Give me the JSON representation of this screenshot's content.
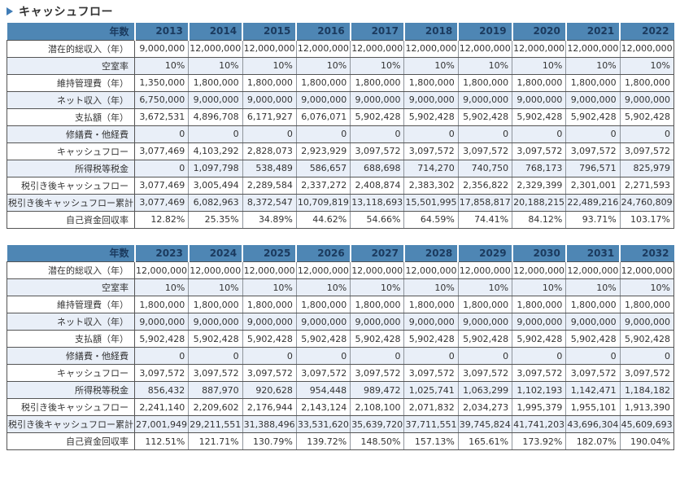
{
  "title": "キャッシュフロー",
  "header_label": "年数",
  "colors": {
    "header_bg": "#4e86b4",
    "header_text": "#1b3a5e",
    "alt_row_bg": "#e9eff8",
    "border_dark": "#555555",
    "border_mid": "#8f959c",
    "title_icon": "#3f7cb6",
    "text": "#333333"
  },
  "tables": [
    {
      "name": "cashflow-2013-2022",
      "years": [
        "2013",
        "2014",
        "2015",
        "2016",
        "2017",
        "2018",
        "2019",
        "2020",
        "2021",
        "2022"
      ],
      "rows": [
        {
          "label": "潜在的総収入（年）",
          "values": [
            "9,000,000",
            "12,000,000",
            "12,000,000",
            "12,000,000",
            "12,000,000",
            "12,000,000",
            "12,000,000",
            "12,000,000",
            "12,000,000",
            "12,000,000"
          ]
        },
        {
          "label": "空室率",
          "values": [
            "10%",
            "10%",
            "10%",
            "10%",
            "10%",
            "10%",
            "10%",
            "10%",
            "10%",
            "10%"
          ]
        },
        {
          "label": "維持管理費（年）",
          "values": [
            "1,350,000",
            "1,800,000",
            "1,800,000",
            "1,800,000",
            "1,800,000",
            "1,800,000",
            "1,800,000",
            "1,800,000",
            "1,800,000",
            "1,800,000"
          ]
        },
        {
          "label": "ネット収入（年）",
          "values": [
            "6,750,000",
            "9,000,000",
            "9,000,000",
            "9,000,000",
            "9,000,000",
            "9,000,000",
            "9,000,000",
            "9,000,000",
            "9,000,000",
            "9,000,000"
          ]
        },
        {
          "label": "支払額（年）",
          "values": [
            "3,672,531",
            "4,896,708",
            "6,171,927",
            "6,076,071",
            "5,902,428",
            "5,902,428",
            "5,902,428",
            "5,902,428",
            "5,902,428",
            "5,902,428"
          ]
        },
        {
          "label": "修繕費・他経費",
          "values": [
            "0",
            "0",
            "0",
            "0",
            "0",
            "0",
            "0",
            "0",
            "0",
            "0"
          ]
        },
        {
          "label": "キャッシュフロー",
          "values": [
            "3,077,469",
            "4,103,292",
            "2,828,073",
            "2,923,929",
            "3,097,572",
            "3,097,572",
            "3,097,572",
            "3,097,572",
            "3,097,572",
            "3,097,572"
          ]
        },
        {
          "label": "所得税等税金",
          "values": [
            "0",
            "1,097,798",
            "538,489",
            "586,657",
            "688,698",
            "714,270",
            "740,750",
            "768,173",
            "796,571",
            "825,979"
          ]
        },
        {
          "label": "税引き後キャッシュフロー",
          "values": [
            "3,077,469",
            "3,005,494",
            "2,289,584",
            "2,337,272",
            "2,408,874",
            "2,383,302",
            "2,356,822",
            "2,329,399",
            "2,301,001",
            "2,271,593"
          ]
        },
        {
          "label": "税引き後キャッシュフロー累計",
          "values": [
            "3,077,469",
            "6,082,963",
            "8,372,547",
            "10,709,819",
            "13,118,693",
            "15,501,995",
            "17,858,817",
            "20,188,215",
            "22,489,216",
            "24,760,809"
          ]
        },
        {
          "label": "自己資金回収率",
          "values": [
            "12.82%",
            "25.35%",
            "34.89%",
            "44.62%",
            "54.66%",
            "64.59%",
            "74.41%",
            "84.12%",
            "93.71%",
            "103.17%"
          ]
        }
      ]
    },
    {
      "name": "cashflow-2023-2032",
      "years": [
        "2023",
        "2024",
        "2025",
        "2026",
        "2027",
        "2028",
        "2029",
        "2030",
        "2031",
        "2032"
      ],
      "rows": [
        {
          "label": "潜在的総収入（年）",
          "values": [
            "12,000,000",
            "12,000,000",
            "12,000,000",
            "12,000,000",
            "12,000,000",
            "12,000,000",
            "12,000,000",
            "12,000,000",
            "12,000,000",
            "12,000,000"
          ]
        },
        {
          "label": "空室率",
          "values": [
            "10%",
            "10%",
            "10%",
            "10%",
            "10%",
            "10%",
            "10%",
            "10%",
            "10%",
            "10%"
          ]
        },
        {
          "label": "維持管理費（年）",
          "values": [
            "1,800,000",
            "1,800,000",
            "1,800,000",
            "1,800,000",
            "1,800,000",
            "1,800,000",
            "1,800,000",
            "1,800,000",
            "1,800,000",
            "1,800,000"
          ]
        },
        {
          "label": "ネット収入（年）",
          "values": [
            "9,000,000",
            "9,000,000",
            "9,000,000",
            "9,000,000",
            "9,000,000",
            "9,000,000",
            "9,000,000",
            "9,000,000",
            "9,000,000",
            "9,000,000"
          ]
        },
        {
          "label": "支払額（年）",
          "values": [
            "5,902,428",
            "5,902,428",
            "5,902,428",
            "5,902,428",
            "5,902,428",
            "5,902,428",
            "5,902,428",
            "5,902,428",
            "5,902,428",
            "5,902,428"
          ]
        },
        {
          "label": "修繕費・他経費",
          "values": [
            "0",
            "0",
            "0",
            "0",
            "0",
            "0",
            "0",
            "0",
            "0",
            "0"
          ]
        },
        {
          "label": "キャッシュフロー",
          "values": [
            "3,097,572",
            "3,097,572",
            "3,097,572",
            "3,097,572",
            "3,097,572",
            "3,097,572",
            "3,097,572",
            "3,097,572",
            "3,097,572",
            "3,097,572"
          ]
        },
        {
          "label": "所得税等税金",
          "values": [
            "856,432",
            "887,970",
            "920,628",
            "954,448",
            "989,472",
            "1,025,741",
            "1,063,299",
            "1,102,193",
            "1,142,471",
            "1,184,182"
          ]
        },
        {
          "label": "税引き後キャッシュフロー",
          "values": [
            "2,241,140",
            "2,209,602",
            "2,176,944",
            "2,143,124",
            "2,108,100",
            "2,071,832",
            "2,034,273",
            "1,995,379",
            "1,955,101",
            "1,913,390"
          ]
        },
        {
          "label": "税引き後キャッシュフロー累計",
          "values": [
            "27,001,949",
            "29,211,551",
            "31,388,496",
            "33,531,620",
            "35,639,720",
            "37,711,551",
            "39,745,824",
            "41,741,203",
            "43,696,304",
            "45,609,693"
          ]
        },
        {
          "label": "自己資金回収率",
          "values": [
            "112.51%",
            "121.71%",
            "130.79%",
            "139.72%",
            "148.50%",
            "157.13%",
            "165.61%",
            "173.92%",
            "182.07%",
            "190.04%"
          ]
        }
      ]
    }
  ]
}
